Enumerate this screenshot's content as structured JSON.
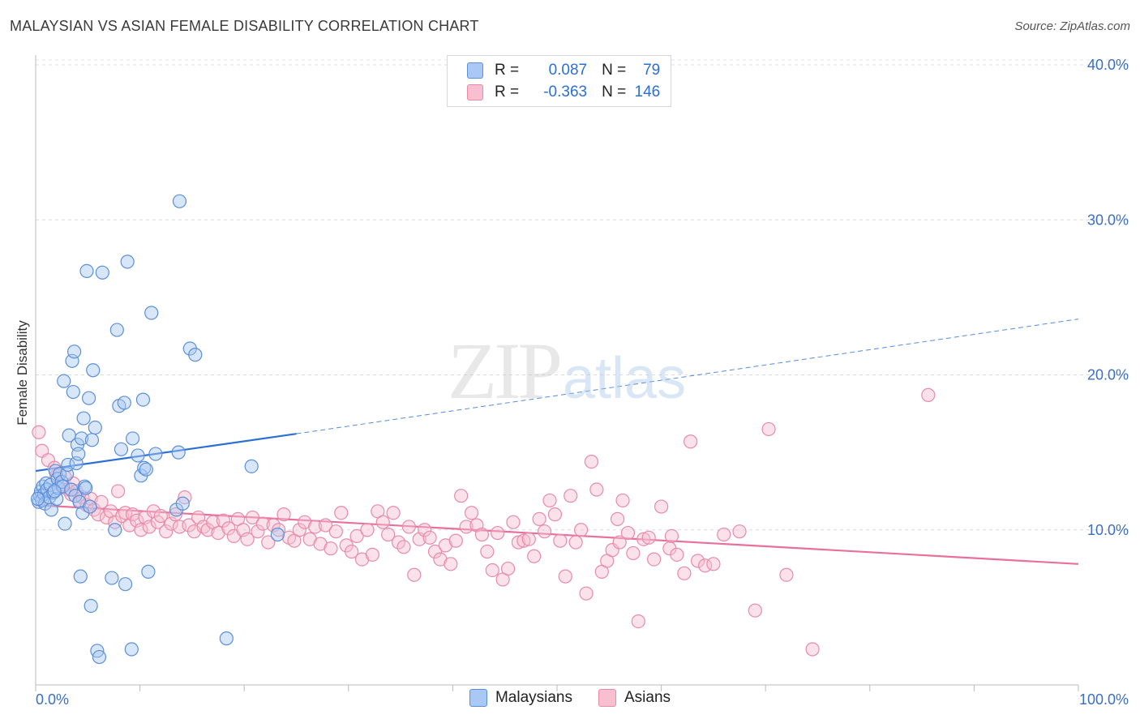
{
  "title": "MALAYSIAN VS ASIAN FEMALE DISABILITY CORRELATION CHART",
  "source": "Source: ZipAtlas.com",
  "watermark": {
    "zip": "ZIP",
    "atlas": "atlas"
  },
  "legend": {
    "rows": [
      {
        "r_label": "R =",
        "r_value": "0.087",
        "n_label": "N =",
        "n_value": "79",
        "fill": "#a9c8f5",
        "stroke": "#5b8fd8"
      },
      {
        "r_label": "R =",
        "r_value": "-0.363",
        "n_label": "N =",
        "n_value": "146",
        "fill": "#f7bfd0",
        "stroke": "#e88aa8"
      }
    ]
  },
  "bottom_legend": [
    {
      "label": "Malaysians",
      "fill": "#a9c8f5",
      "stroke": "#5b8fd8"
    },
    {
      "label": "Asians",
      "fill": "#f7bfd0",
      "stroke": "#e88aa8"
    }
  ],
  "chart_data": {
    "type": "scatter",
    "title": "MALAYSIAN VS ASIAN FEMALE DISABILITY CORRELATION CHART",
    "ylabel": "Female Disability",
    "xlabel": "",
    "xlim": [
      0,
      100
    ],
    "ylim": [
      0,
      40
    ],
    "y_ticks": [
      10,
      20,
      30,
      40
    ],
    "y_tick_labels": [
      "10.0%",
      "20.0%",
      "30.0%",
      "40.0%"
    ],
    "x_tick_labels": [
      "0.0%",
      "100.0%"
    ],
    "grid": "horizontal dashed",
    "legend_position": "top-center",
    "colors": {
      "malaysians": "#5b8fd8",
      "asians": "#e88aa8",
      "malaysians_line": "#2b6fd6",
      "asians_line": "#e8709a"
    },
    "series": [
      {
        "name": "Malaysians",
        "points": [
          [
            0.3,
            11.8
          ],
          [
            0.4,
            12.2
          ],
          [
            0.5,
            12.5
          ],
          [
            0.6,
            11.9
          ],
          [
            0.7,
            12.8
          ],
          [
            0.8,
            12.3
          ],
          [
            0.9,
            11.7
          ],
          [
            1.0,
            13.0
          ],
          [
            1.1,
            12.6
          ],
          [
            1.3,
            12.1
          ],
          [
            1.4,
            12.9
          ],
          [
            1.5,
            11.3
          ],
          [
            1.7,
            12.4
          ],
          [
            1.9,
            13.8
          ],
          [
            2.0,
            12.0
          ],
          [
            2.1,
            13.3
          ],
          [
            2.2,
            12.7
          ],
          [
            2.3,
            13.6
          ],
          [
            2.5,
            13.1
          ],
          [
            2.6,
            12.8
          ],
          [
            2.7,
            19.6
          ],
          [
            2.8,
            10.4
          ],
          [
            3.0,
            13.6
          ],
          [
            3.1,
            14.2
          ],
          [
            3.2,
            16.1
          ],
          [
            3.4,
            12.6
          ],
          [
            3.5,
            20.9
          ],
          [
            3.6,
            18.9
          ],
          [
            3.7,
            21.5
          ],
          [
            3.8,
            12.2
          ],
          [
            3.9,
            14.3
          ],
          [
            4.0,
            15.5
          ],
          [
            4.1,
            14.9
          ],
          [
            4.2,
            11.8
          ],
          [
            4.3,
            7.0
          ],
          [
            4.4,
            15.9
          ],
          [
            4.5,
            11.1
          ],
          [
            4.6,
            17.2
          ],
          [
            4.7,
            12.8
          ],
          [
            4.8,
            12.7
          ],
          [
            4.9,
            26.7
          ],
          [
            5.1,
            18.5
          ],
          [
            5.2,
            11.5
          ],
          [
            5.3,
            5.1
          ],
          [
            5.4,
            15.8
          ],
          [
            5.5,
            20.3
          ],
          [
            5.7,
            16.6
          ],
          [
            5.9,
            2.2
          ],
          [
            6.1,
            1.8
          ],
          [
            6.4,
            26.6
          ],
          [
            7.3,
            6.9
          ],
          [
            7.6,
            10.0
          ],
          [
            7.8,
            22.9
          ],
          [
            8.0,
            18.0
          ],
          [
            8.2,
            15.2
          ],
          [
            8.5,
            18.2
          ],
          [
            8.6,
            6.5
          ],
          [
            8.8,
            27.3
          ],
          [
            9.2,
            2.3
          ],
          [
            9.3,
            15.9
          ],
          [
            9.8,
            14.8
          ],
          [
            10.1,
            13.5
          ],
          [
            10.3,
            18.4
          ],
          [
            10.4,
            14.0
          ],
          [
            10.6,
            13.9
          ],
          [
            10.8,
            7.3
          ],
          [
            11.1,
            24.0
          ],
          [
            11.5,
            14.9
          ],
          [
            13.5,
            11.3
          ],
          [
            13.7,
            15.0
          ],
          [
            13.8,
            31.2
          ],
          [
            14.1,
            11.7
          ],
          [
            14.8,
            21.7
          ],
          [
            15.3,
            21.3
          ],
          [
            18.3,
            3.0
          ],
          [
            20.7,
            14.1
          ],
          [
            23.2,
            9.7
          ],
          [
            1.8,
            12.5
          ],
          [
            0.2,
            12.0
          ]
        ],
        "trend": {
          "x0": 0,
          "y0": 13.8,
          "x1": 25,
          "y1": 16.2,
          "dashed_to_x": 100,
          "dashed_to_y": 23.6
        }
      },
      {
        "name": "Asians",
        "points": [
          [
            0.3,
            16.3
          ],
          [
            0.6,
            15.1
          ],
          [
            1.2,
            14.5
          ],
          [
            1.8,
            14.0
          ],
          [
            2.0,
            13.5
          ],
          [
            2.4,
            12.9
          ],
          [
            2.8,
            13.4
          ],
          [
            3.1,
            12.6
          ],
          [
            3.4,
            12.3
          ],
          [
            3.6,
            13.0
          ],
          [
            3.9,
            12.5
          ],
          [
            4.2,
            11.9
          ],
          [
            4.5,
            12.1
          ],
          [
            4.9,
            11.6
          ],
          [
            5.3,
            12.0
          ],
          [
            5.6,
            11.3
          ],
          [
            6.0,
            11.0
          ],
          [
            6.3,
            11.8
          ],
          [
            6.8,
            10.8
          ],
          [
            7.2,
            11.2
          ],
          [
            7.6,
            10.5
          ],
          [
            7.9,
            12.5
          ],
          [
            8.3,
            10.9
          ],
          [
            8.6,
            11.1
          ],
          [
            9.0,
            10.3
          ],
          [
            9.3,
            11.0
          ],
          [
            9.7,
            10.6
          ],
          [
            10.1,
            10.0
          ],
          [
            10.5,
            10.8
          ],
          [
            10.9,
            10.2
          ],
          [
            11.3,
            11.2
          ],
          [
            11.7,
            10.5
          ],
          [
            12.0,
            10.9
          ],
          [
            12.5,
            9.9
          ],
          [
            13.0,
            10.4
          ],
          [
            13.4,
            11.0
          ],
          [
            13.8,
            10.2
          ],
          [
            14.3,
            12.1
          ],
          [
            14.7,
            10.3
          ],
          [
            15.2,
            9.9
          ],
          [
            15.6,
            10.8
          ],
          [
            16.1,
            10.2
          ],
          [
            16.5,
            10.0
          ],
          [
            17.0,
            10.5
          ],
          [
            17.5,
            9.8
          ],
          [
            18.0,
            10.6
          ],
          [
            18.5,
            10.1
          ],
          [
            19.0,
            9.6
          ],
          [
            19.4,
            10.7
          ],
          [
            19.9,
            10.0
          ],
          [
            20.3,
            9.4
          ],
          [
            20.8,
            10.8
          ],
          [
            21.3,
            9.9
          ],
          [
            21.8,
            10.4
          ],
          [
            22.3,
            9.2
          ],
          [
            22.8,
            10.3
          ],
          [
            23.3,
            10.0
          ],
          [
            23.8,
            11.0
          ],
          [
            24.3,
            9.5
          ],
          [
            24.8,
            9.3
          ],
          [
            25.3,
            10.0
          ],
          [
            25.8,
            10.5
          ],
          [
            26.3,
            9.4
          ],
          [
            26.8,
            10.2
          ],
          [
            27.3,
            9.1
          ],
          [
            27.8,
            10.3
          ],
          [
            28.3,
            8.8
          ],
          [
            28.8,
            9.9
          ],
          [
            29.3,
            11.1
          ],
          [
            29.8,
            9.0
          ],
          [
            30.3,
            8.6
          ],
          [
            30.8,
            9.6
          ],
          [
            31.3,
            8.1
          ],
          [
            31.8,
            10.0
          ],
          [
            32.3,
            8.4
          ],
          [
            32.8,
            11.2
          ],
          [
            33.3,
            10.5
          ],
          [
            33.8,
            9.7
          ],
          [
            34.3,
            11.1
          ],
          [
            34.8,
            9.2
          ],
          [
            35.3,
            8.9
          ],
          [
            35.8,
            10.2
          ],
          [
            36.3,
            7.1
          ],
          [
            36.8,
            9.4
          ],
          [
            37.3,
            10.0
          ],
          [
            37.8,
            9.5
          ],
          [
            38.3,
            8.6
          ],
          [
            38.8,
            8.1
          ],
          [
            39.3,
            9.0
          ],
          [
            39.8,
            7.8
          ],
          [
            40.3,
            9.3
          ],
          [
            40.8,
            12.2
          ],
          [
            41.3,
            10.2
          ],
          [
            41.8,
            11.1
          ],
          [
            42.3,
            10.3
          ],
          [
            42.8,
            9.7
          ],
          [
            43.3,
            8.6
          ],
          [
            43.8,
            7.4
          ],
          [
            44.3,
            9.8
          ],
          [
            44.8,
            6.8
          ],
          [
            45.3,
            7.5
          ],
          [
            45.8,
            10.5
          ],
          [
            46.3,
            9.2
          ],
          [
            46.8,
            9.3
          ],
          [
            47.3,
            9.4
          ],
          [
            47.8,
            8.3
          ],
          [
            48.3,
            10.7
          ],
          [
            48.8,
            9.9
          ],
          [
            49.3,
            11.9
          ],
          [
            49.8,
            11.0
          ],
          [
            50.3,
            9.3
          ],
          [
            50.8,
            7.0
          ],
          [
            51.3,
            12.2
          ],
          [
            51.8,
            9.2
          ],
          [
            52.3,
            10.0
          ],
          [
            52.8,
            5.9
          ],
          [
            53.3,
            14.4
          ],
          [
            53.8,
            12.6
          ],
          [
            54.3,
            7.3
          ],
          [
            54.8,
            8.0
          ],
          [
            55.3,
            8.7
          ],
          [
            55.8,
            10.7
          ],
          [
            56.3,
            11.9
          ],
          [
            56.8,
            9.8
          ],
          [
            57.3,
            8.5
          ],
          [
            57.8,
            4.1
          ],
          [
            58.3,
            9.4
          ],
          [
            58.8,
            9.5
          ],
          [
            59.3,
            8.1
          ],
          [
            60.0,
            11.5
          ],
          [
            60.8,
            8.8
          ],
          [
            61.5,
            8.4
          ],
          [
            62.2,
            7.2
          ],
          [
            62.8,
            15.7
          ],
          [
            63.5,
            8.0
          ],
          [
            64.2,
            7.7
          ],
          [
            65.0,
            7.8
          ],
          [
            66.0,
            9.7
          ],
          [
            67.5,
            9.9
          ],
          [
            69.0,
            4.8
          ],
          [
            70.3,
            16.5
          ],
          [
            72.0,
            7.1
          ],
          [
            74.5,
            2.3
          ],
          [
            85.6,
            18.7
          ],
          [
            61.0,
            9.6
          ],
          [
            56.0,
            9.2
          ]
        ],
        "trend": {
          "x0": 0,
          "y0": 11.6,
          "x1": 100,
          "y1": 7.8
        }
      }
    ]
  }
}
